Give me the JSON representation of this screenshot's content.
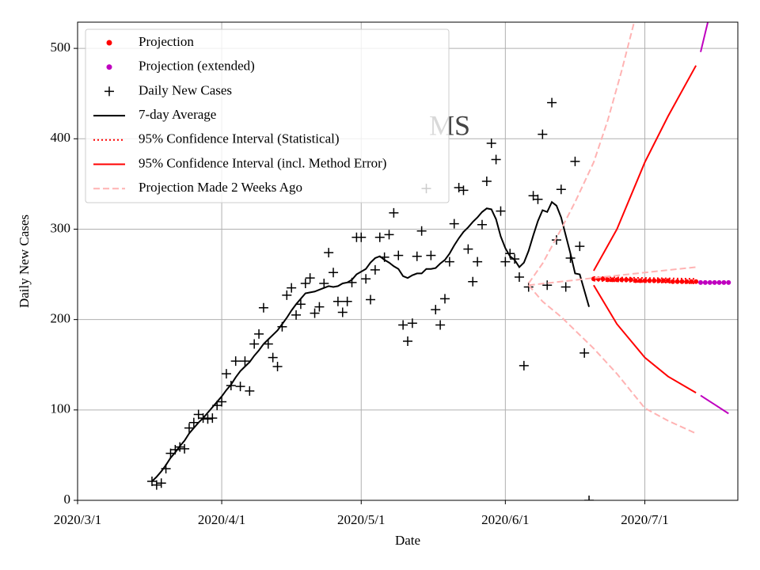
{
  "chart_data": {
    "type": "line",
    "title": "MS",
    "x_label": "Date",
    "y_label": "Daily New Cases",
    "xlim": [
      "2020-03-01",
      "2020-07-21"
    ],
    "ylim": [
      0,
      529
    ],
    "xticks": [
      {
        "value": "2020-03-01",
        "label": "2020/3/1"
      },
      {
        "value": "2020-04-01",
        "label": "2020/4/1"
      },
      {
        "value": "2020-05-01",
        "label": "2020/5/1"
      },
      {
        "value": "2020-06-01",
        "label": "2020/6/1"
      },
      {
        "value": "2020-07-01",
        "label": "2020/7/1"
      }
    ],
    "yticks": [
      0,
      100,
      200,
      300,
      400,
      500
    ],
    "grid": true,
    "legend": "upper left",
    "series": [
      {
        "name": "Projection",
        "color": "#ff0000",
        "style": "dot",
        "pieces": [
          {
            "x": [
              "2020-06-20",
              "2020-06-21",
              "2020-06-22",
              "2020-06-23",
              "2020-06-24",
              "2020-06-25",
              "2020-06-26",
              "2020-06-27",
              "2020-06-28",
              "2020-06-29",
              "2020-06-30",
              "2020-07-01",
              "2020-07-02",
              "2020-07-03",
              "2020-07-04",
              "2020-07-05",
              "2020-07-06",
              "2020-07-07",
              "2020-07-08",
              "2020-07-09",
              "2020-07-10",
              "2020-07-11",
              "2020-07-12"
            ],
            "values": [
              245,
              245,
              245,
              244,
              244,
              244,
              244,
              244,
              244,
              243,
              243,
              243,
              243,
              243,
              243,
              243,
              243,
              242,
              242,
              242,
              242,
              242,
              242
            ]
          }
        ]
      },
      {
        "name": "Projection (extended)",
        "color": "#bf00bf",
        "style": "dot",
        "pieces": [
          {
            "x": [
              "2020-07-13",
              "2020-07-14",
              "2020-07-15",
              "2020-07-16",
              "2020-07-17",
              "2020-07-18",
              "2020-07-19"
            ],
            "values": [
              241,
              241,
              241,
              241,
              241,
              241,
              241
            ]
          }
        ]
      },
      {
        "name": "Daily New Cases",
        "color": "#000000",
        "style": "plus",
        "pieces": [
          {
            "x": [
              "2020-03-17",
              "2020-03-18",
              "2020-03-19",
              "2020-03-20",
              "2020-03-21",
              "2020-03-22",
              "2020-03-23",
              "2020-03-24",
              "2020-03-25",
              "2020-03-26",
              "2020-03-27",
              "2020-03-28",
              "2020-03-29",
              "2020-03-30",
              "2020-03-31",
              "2020-04-01",
              "2020-04-02",
              "2020-04-03",
              "2020-04-04",
              "2020-04-05",
              "2020-04-06",
              "2020-04-07",
              "2020-04-08",
              "2020-04-09",
              "2020-04-10",
              "2020-04-11",
              "2020-04-12",
              "2020-04-13",
              "2020-04-14",
              "2020-04-15",
              "2020-04-16",
              "2020-04-17",
              "2020-04-18",
              "2020-04-19",
              "2020-04-20",
              "2020-04-21",
              "2020-04-22",
              "2020-04-23",
              "2020-04-24",
              "2020-04-25",
              "2020-04-26",
              "2020-04-27",
              "2020-04-28",
              "2020-04-29",
              "2020-04-30",
              "2020-05-01",
              "2020-05-02",
              "2020-05-03",
              "2020-05-04",
              "2020-05-05",
              "2020-05-06",
              "2020-05-07",
              "2020-05-08",
              "2020-05-09",
              "2020-05-10",
              "2020-05-11",
              "2020-05-12",
              "2020-05-13",
              "2020-05-14",
              "2020-05-15",
              "2020-05-16",
              "2020-05-17",
              "2020-05-18",
              "2020-05-19",
              "2020-05-20",
              "2020-05-21",
              "2020-05-22",
              "2020-05-23",
              "2020-05-24",
              "2020-05-25",
              "2020-05-26",
              "2020-05-27",
              "2020-05-28",
              "2020-05-29",
              "2020-05-30",
              "2020-05-31",
              "2020-06-01",
              "2020-06-02",
              "2020-06-03",
              "2020-06-04",
              "2020-06-05",
              "2020-06-06",
              "2020-06-07",
              "2020-06-08",
              "2020-06-09",
              "2020-06-10",
              "2020-06-11",
              "2020-06-12",
              "2020-06-13",
              "2020-06-14",
              "2020-06-15",
              "2020-06-16",
              "2020-06-17",
              "2020-06-18",
              "2020-06-19"
            ],
            "values": [
              21,
              17,
              19,
              35,
              52,
              56,
              59,
              57,
              80,
              86,
              95,
              91,
              90,
              91,
              105,
              109,
              140,
              127,
              154,
              126,
              154,
              121,
              173,
              184,
              213,
              173,
              158,
              148,
              192,
              227,
              235,
              205,
              217,
              240,
              246,
              207,
              214,
              240,
              274,
              252,
              220,
              208,
              220,
              241,
              291,
              291,
              245,
              222,
              255,
              291,
              269,
              294,
              318,
              271,
              194,
              176,
              196,
              270,
              298,
              345,
              271,
              211,
              194,
              223,
              264,
              306,
              346,
              343,
              278,
              242,
              264,
              305,
              353,
              395,
              377,
              320,
              264,
              273,
              267,
              247,
              149,
              236,
              337,
              333,
              405,
              238,
              440,
              288,
              344,
              236,
              268,
              375,
              281,
              163,
              0
            ]
          }
        ]
      },
      {
        "name": "7-day Average",
        "color": "#000000",
        "style": "solid",
        "pieces": [
          {
            "x": [
              "2020-03-17",
              "2020-03-18",
              "2020-03-19",
              "2020-03-20",
              "2020-03-21",
              "2020-03-22",
              "2020-03-23",
              "2020-03-24",
              "2020-03-25",
              "2020-03-26",
              "2020-03-27",
              "2020-03-28",
              "2020-03-29",
              "2020-03-30",
              "2020-03-31",
              "2020-04-01",
              "2020-04-02",
              "2020-04-03",
              "2020-04-04",
              "2020-04-05",
              "2020-04-06",
              "2020-04-07",
              "2020-04-08",
              "2020-04-09",
              "2020-04-10",
              "2020-04-11",
              "2020-04-12",
              "2020-04-13",
              "2020-04-14",
              "2020-04-15",
              "2020-04-16",
              "2020-04-17",
              "2020-04-18",
              "2020-04-19",
              "2020-04-20",
              "2020-04-21",
              "2020-04-22",
              "2020-04-23",
              "2020-04-24",
              "2020-04-25",
              "2020-04-26",
              "2020-04-27",
              "2020-04-28",
              "2020-04-29",
              "2020-04-30",
              "2020-05-01",
              "2020-05-02",
              "2020-05-03",
              "2020-05-04",
              "2020-05-05",
              "2020-05-06",
              "2020-05-07",
              "2020-05-08",
              "2020-05-09",
              "2020-05-10",
              "2020-05-11",
              "2020-05-12",
              "2020-05-13",
              "2020-05-14",
              "2020-05-15",
              "2020-05-16",
              "2020-05-17",
              "2020-05-18",
              "2020-05-19",
              "2020-05-20",
              "2020-05-21",
              "2020-05-22",
              "2020-05-23",
              "2020-05-24",
              "2020-05-25",
              "2020-05-26",
              "2020-05-27",
              "2020-05-28",
              "2020-05-29",
              "2020-05-30",
              "2020-05-31",
              "2020-06-01",
              "2020-06-02",
              "2020-06-03",
              "2020-06-04",
              "2020-06-05",
              "2020-06-06",
              "2020-06-07",
              "2020-06-08",
              "2020-06-09",
              "2020-06-10",
              "2020-06-11",
              "2020-06-12",
              "2020-06-13",
              "2020-06-14",
              "2020-06-15",
              "2020-06-16",
              "2020-06-17",
              "2020-06-18",
              "2020-06-19"
            ],
            "values": [
              21,
              26,
              32,
              39,
              47,
              53,
              60,
              66,
              74,
              80,
              86,
              91,
              97,
              103,
              109,
              115,
              122,
              128,
              136,
              143,
              148,
              153,
              160,
              166,
              173,
              178,
              183,
              188,
              195,
              202,
              210,
              217,
              223,
              229,
              230,
              231,
              233,
              235,
              237,
              236,
              237,
              240,
              241,
              244,
              250,
              253,
              256,
              263,
              268,
              270,
              266,
              263,
              259,
              256,
              248,
              246,
              249,
              251,
              251,
              256,
              256,
              257,
              262,
              266,
              273,
              282,
              290,
              297,
              302,
              308,
              313,
              319,
              323,
              322,
              311,
              292,
              279,
              270,
              266,
              258,
              263,
              276,
              293,
              309,
              321,
              319,
              330,
              326,
              313,
              293,
              273,
              251,
              250,
              232,
              214
            ]
          }
        ]
      },
      {
        "name": "95% Confidence Interval (Statistical)",
        "color": "#ff0000",
        "style": "dotted",
        "pieces": [
          {
            "x": [
              "2020-06-20",
              "2020-07-12"
            ],
            "values": [
              247,
              245
            ]
          },
          {
            "x": [
              "2020-06-20",
              "2020-07-12"
            ],
            "values": [
              243,
              240
            ]
          }
        ]
      },
      {
        "name": "95% Confidence Interval (incl. Method Error)",
        "color": "#ff0000",
        "style": "solid",
        "pieces": [
          {
            "x": [
              "2020-06-20",
              "2020-06-25",
              "2020-07-01",
              "2020-07-06",
              "2020-07-12"
            ],
            "values": [
              254,
              300,
              374,
              425,
              481
            ]
          },
          {
            "x": [
              "2020-06-20",
              "2020-06-25",
              "2020-07-01",
              "2020-07-06",
              "2020-07-12"
            ],
            "values": [
              238,
              195,
              158,
              137,
              119
            ]
          },
          {
            "color": "#bf00bf",
            "x": [
              "2020-07-13",
              "2020-07-16"
            ],
            "values": [
              496,
              560
            ]
          },
          {
            "color": "#bf00bf",
            "x": [
              "2020-07-13",
              "2020-07-16",
              "2020-07-19"
            ],
            "values": [
              116,
              106,
              96
            ]
          }
        ]
      },
      {
        "name": "Projection Made 2 Weeks Ago",
        "color": "#ffb3b3",
        "style": "dashed",
        "pieces": [
          {
            "x": [
              "2020-06-06",
              "2020-06-09",
              "2020-06-13",
              "2020-06-16",
              "2020-06-20",
              "2020-06-23",
              "2020-06-26",
              "2020-06-29"
            ],
            "values": [
              240,
              262,
              300,
              330,
              374,
              420,
              475,
              535
            ]
          },
          {
            "x": [
              "2020-06-06",
              "2020-06-20",
              "2020-07-01",
              "2020-07-12"
            ],
            "values": [
              238,
              246,
              252,
              258
            ]
          },
          {
            "x": [
              "2020-06-06",
              "2020-06-09",
              "2020-06-13",
              "2020-06-16",
              "2020-06-20",
              "2020-06-25",
              "2020-07-01",
              "2020-07-06",
              "2020-07-12"
            ],
            "values": [
              238,
              220,
              203,
              188,
              168,
              140,
              102,
              88,
              74
            ]
          }
        ]
      }
    ]
  }
}
